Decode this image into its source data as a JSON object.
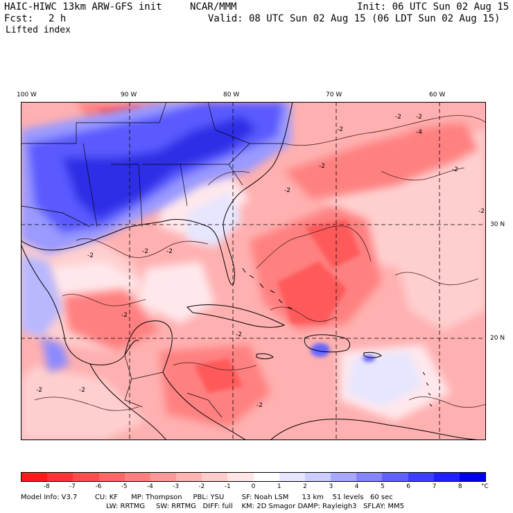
{
  "header": {
    "title": "HAIC-HIWC 13km ARW-GFS init",
    "org": "NCAR/MMM",
    "init": "Init: 06 UTC Sun 02 Aug 15",
    "fcst_label": "Fcst:",
    "fcst_value": "2 h",
    "valid": "Valid: 08 UTC Sun 02 Aug 15 (06 LDT Sun 02 Aug 15)",
    "field": "Lifted index"
  },
  "map": {
    "lon_labels": [
      "100 W",
      "90 W",
      "80 W",
      "70 W",
      "60 W"
    ],
    "lat_labels": [
      "30 N",
      "20 N"
    ],
    "contour_labels": [
      "-2",
      "-2",
      "-2",
      "-2",
      "-2",
      "-4",
      "-2",
      "-2",
      "-2",
      "-2",
      "-2",
      "-2",
      "-2",
      "-2",
      "-2",
      "-2"
    ]
  },
  "colorbar": {
    "labels": [
      "-8",
      "-7",
      "-6",
      "-5",
      "-4",
      "-3",
      "-2",
      "-1",
      "0",
      "1",
      "2",
      "3",
      "4",
      "5",
      "6",
      "7",
      "8"
    ],
    "unit": "°C",
    "colors": [
      "#ff1a1a",
      "#ff3333",
      "#ff4d4d",
      "#ff6666",
      "#ff7f7f",
      "#ff9999",
      "#ffb3b3",
      "#ffcccc",
      "#ffe6e6",
      "#ffffff",
      "#e6e6ff",
      "#ccccff",
      "#a8a8ff",
      "#8585ff",
      "#6161ff",
      "#3d3dff",
      "#1f1fff",
      "#0000e6"
    ]
  },
  "model_info": {
    "line1": "Model Info: V3.7        CU: KF      MP: Thompson     PBL: YSU        SF: Noah LSM      13 km    51 levels   60 sec",
    "line2": "LW: RRTMG     SW: RRTMG   DIFF: full    KM: 2D Smagor DAMP: Rayleigh3   SFLAY: MM5"
  }
}
